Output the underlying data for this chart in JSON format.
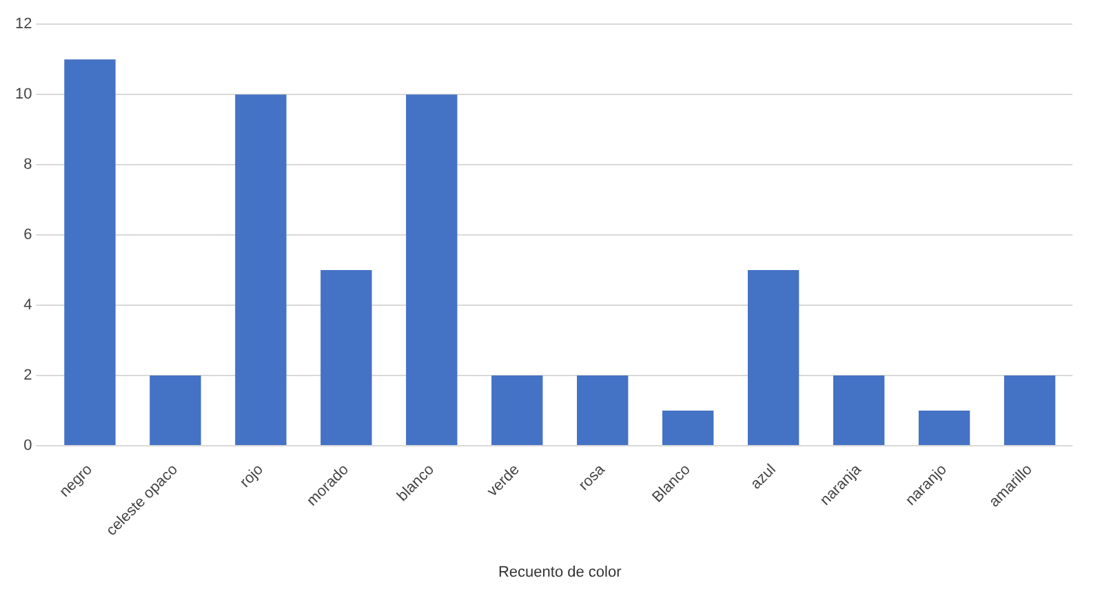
{
  "chart_data": {
    "type": "bar",
    "xlabel": "Recuento de color",
    "categories": [
      "negro",
      "celeste opaco",
      "rojo",
      "morado",
      "blanco",
      "verde",
      "rosa",
      "Blanco",
      "azul",
      "naranja",
      "naranjo",
      "amarillo"
    ],
    "values": [
      11,
      2,
      10,
      5,
      10,
      2,
      2,
      1,
      5,
      2,
      1,
      2
    ],
    "color": "#4472c4",
    "ylim": [
      0,
      12
    ],
    "yticks": [
      0,
      2,
      4,
      6,
      8,
      10,
      12
    ],
    "grid": "y"
  }
}
